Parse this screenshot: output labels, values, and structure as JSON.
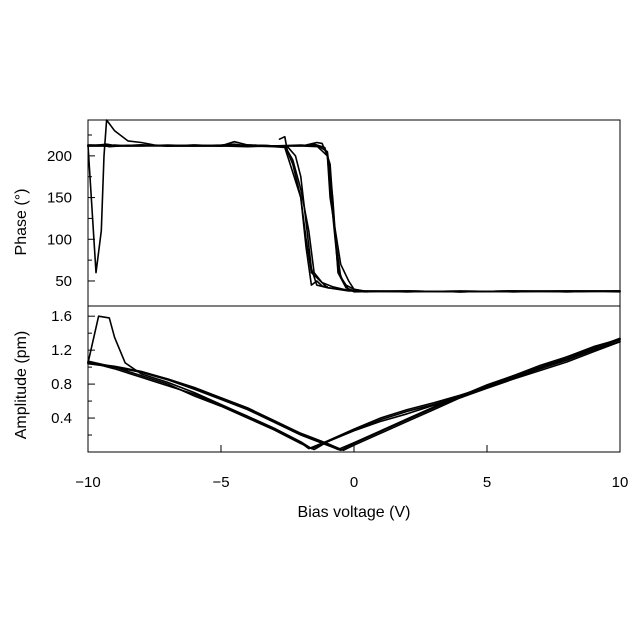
{
  "chart_data": {
    "type": "line",
    "xlabel": "Bias voltage (V)",
    "xlim": [
      -10,
      10
    ],
    "xticks": [
      -10,
      -5,
      0,
      5,
      10
    ],
    "xtick_labels": [
      "−10",
      "−5",
      "0",
      "5",
      "10"
    ],
    "grid": false,
    "legend": "none",
    "line_color": "#000000",
    "panels": [
      {
        "id": "phase",
        "ylabel": "Phase (°)",
        "ylim": [
          20,
          243
        ],
        "yticks": [
          50,
          100,
          150,
          200
        ],
        "ytick_labels": [
          "50",
          "100",
          "150",
          "200"
        ],
        "minor_yticks": [
          75,
          125,
          175,
          225
        ],
        "series": [
          {
            "x": [
              -10,
              -9.6,
              -9.3,
              -9.1,
              -8.7,
              -8.0,
              -7.0,
              -6.0,
              -5.0,
              -4.5,
              -4.0,
              -3.0,
              -2.6,
              -2.4,
              -2.0,
              -1.8,
              -1.6,
              -1.0,
              -0.6,
              -0.2,
              0,
              2,
              4,
              6,
              8,
              10
            ],
            "y": [
              213,
              213,
              214,
              213,
              212,
              212,
              213,
              212,
              213,
              214,
              212,
              211,
              210,
              190,
              150,
              100,
              60,
              42,
              40,
              38,
              38,
              37,
              38,
              37,
              38,
              38
            ]
          },
          {
            "x": [
              10,
              8,
              6,
              4,
              2,
              0,
              -0.2,
              -0.4,
              -0.6,
              -0.8,
              -1.0,
              -1.4,
              -2.0,
              -3.0,
              -4.0,
              -5.0,
              -6.0,
              -7.0,
              -8.0,
              -9.0,
              -10
            ],
            "y": [
              38,
              37,
              38,
              37,
              38,
              37,
              40,
              48,
              65,
              130,
              200,
              212,
              213,
              212,
              213,
              212,
              212,
              212,
              213,
              212,
              213
            ]
          },
          {
            "x": [
              -10,
              -9.5,
              -9.2,
              -8.8,
              -8.0,
              -7.0,
              -6.0,
              -5.0,
              -4.5,
              -4.0,
              -3.0,
              -2.6,
              -2.3,
              -2.0,
              -1.7,
              -1.5,
              -1.2,
              -0.8,
              -0.4,
              0,
              0.4,
              2,
              4,
              6,
              8,
              10
            ],
            "y": [
              212,
              213,
              211,
              212,
              213,
              212,
              212,
              212,
              217,
              213,
              212,
              212,
              195,
              160,
              110,
              60,
              48,
              43,
              40,
              38,
              37,
              38,
              37,
              38,
              38,
              38
            ]
          },
          {
            "x": [
              10,
              8,
              6,
              4,
              2,
              0.4,
              0,
              -0.3,
              -0.5,
              -0.7,
              -0.9,
              -1.1,
              -1.5,
              -2.0,
              -3.0,
              -4.0,
              -5.0,
              -6.0,
              -7.0,
              -8.0,
              -9.0,
              -10
            ],
            "y": [
              38,
              38,
              37,
              38,
              37,
              38,
              40,
              45,
              55,
              100,
              190,
              210,
              214,
              212,
              212,
              211,
              212,
              213,
              212,
              212,
              212,
              212
            ]
          },
          {
            "x": [
              -10,
              -9.6,
              -9.3,
              -9.0,
              -8.5,
              -8.0,
              -7.0,
              -6.0,
              -5.0,
              -4.0,
              -3.0,
              -2.5,
              -2.2,
              -2.0,
              -1.8,
              -1.6,
              -1.4,
              -1.0,
              -0.5,
              0,
              2,
              4,
              6,
              8,
              10
            ],
            "y": [
              212,
              213,
              212,
              213,
              212,
              213,
              212,
              213,
              212,
              213,
              212,
              211,
              200,
              175,
              120,
              65,
              45,
              42,
              40,
              38,
              38,
              37,
              38,
              37,
              38
            ]
          },
          {
            "x": [
              10,
              8,
              6,
              4,
              2,
              0,
              -0.3,
              -0.6,
              -0.8,
              -1.0,
              -1.3,
              -2.0,
              -3.0,
              -4.0,
              -5.0,
              -6.0,
              -7.0,
              -8.0,
              -9.0,
              -10
            ],
            "y": [
              37,
              38,
              38,
              37,
              38,
              38,
              42,
              60,
              150,
              205,
              211,
              212,
              212,
              213,
              212,
              212,
              212,
              213,
              212,
              212
            ]
          },
          {
            "x": [
              -10,
              -9.7,
              -9.5,
              -9.4,
              -9.3,
              -9.0,
              -8.5,
              -8.0,
              -7.5,
              -7.0
            ],
            "y": [
              213,
              60,
              110,
              200,
              243,
              230,
              218,
              216,
              213,
              212
            ]
          },
          {
            "x": [
              -2.8,
              -2.6,
              -2.5,
              -2.3,
              -2.0,
              -1.8,
              -1.6,
              -1.4,
              -1.2,
              -1.0
            ],
            "y": [
              220,
              223,
              205,
              190,
              150,
              90,
              45,
              50,
              44,
              43
            ]
          },
          {
            "x": [
              -1.8,
              -1.4,
              -1.2,
              -1.0,
              -0.9,
              -0.7,
              -0.5,
              -0.2,
              0,
              0.5
            ],
            "y": [
              213,
              216,
              215,
              200,
              150,
              110,
              70,
              50,
              40,
              37
            ]
          }
        ]
      },
      {
        "id": "amplitude",
        "ylabel": "Amplitude (pm)",
        "ylim": [
          0,
          1.72
        ],
        "yticks": [
          0.4,
          0.8,
          1.2,
          1.6
        ],
        "ytick_labels": [
          "0.4",
          "0.8",
          "1.2",
          "1.6"
        ],
        "minor_yticks": [
          0.2,
          0.6,
          1.0,
          1.4
        ],
        "series": [
          {
            "x": [
              -10,
              -9.6,
              -9.2,
              -9.0,
              -8.6,
              -8.0,
              -7.0,
              -6.0,
              -5.0,
              -4.0,
              -3.0,
              -2.0,
              -1.6,
              -1.0,
              0,
              1,
              2,
              3,
              4,
              5,
              6,
              7,
              8,
              9,
              10
            ],
            "y": [
              1.05,
              1.6,
              1.58,
              1.35,
              1.05,
              0.92,
              0.82,
              0.7,
              0.56,
              0.42,
              0.28,
              0.12,
              0.04,
              0.12,
              0.25,
              0.36,
              0.45,
              0.55,
              0.64,
              0.75,
              0.86,
              0.96,
              1.06,
              1.18,
              1.3
            ]
          },
          {
            "x": [
              10,
              9,
              8,
              7,
              6,
              5,
              4,
              3,
              2,
              1,
              0,
              -0.5,
              -1.0,
              -2.0,
              -3.0,
              -4.0,
              -5.0,
              -6.0,
              -7.0,
              -8.0,
              -9.0,
              -10
            ],
            "y": [
              1.32,
              1.22,
              1.12,
              1.0,
              0.9,
              0.78,
              0.65,
              0.52,
              0.38,
              0.24,
              0.1,
              0.02,
              0.08,
              0.2,
              0.35,
              0.5,
              0.62,
              0.74,
              0.85,
              0.94,
              1.0,
              1.06
            ]
          },
          {
            "x": [
              -10,
              -9.0,
              -8.0,
              -7.0,
              -6.0,
              -5.0,
              -4.0,
              -3.0,
              -2.0,
              -1.5,
              -1.0,
              0,
              1,
              2,
              3,
              4,
              5,
              6,
              7,
              8,
              9,
              10
            ],
            "y": [
              1.07,
              1.0,
              0.9,
              0.8,
              0.66,
              0.54,
              0.4,
              0.26,
              0.1,
              0.03,
              0.12,
              0.26,
              0.38,
              0.48,
              0.56,
              0.66,
              0.76,
              0.87,
              0.98,
              1.08,
              1.2,
              1.33
            ]
          },
          {
            "x": [
              10,
              9,
              8,
              7,
              6,
              5,
              4,
              3,
              2,
              1,
              0,
              -0.4,
              -1.0,
              -2.0,
              -3.0,
              -4.0,
              -5.0,
              -6.0,
              -7.0,
              -8.0,
              -9.0,
              -10
            ],
            "y": [
              1.3,
              1.2,
              1.1,
              0.98,
              0.88,
              0.77,
              0.64,
              0.5,
              0.36,
              0.22,
              0.08,
              0.02,
              0.1,
              0.22,
              0.37,
              0.52,
              0.64,
              0.76,
              0.86,
              0.95,
              1.01,
              1.05
            ]
          },
          {
            "x": [
              -10,
              -9.5,
              -9.0,
              -8.0,
              -7.0,
              -6.0,
              -5.0,
              -4.0,
              -3.0,
              -2.0,
              -1.7,
              -1.0,
              0,
              1,
              2,
              3,
              4,
              5,
              6,
              7,
              8,
              9,
              10
            ],
            "y": [
              1.05,
              1.02,
              0.98,
              0.88,
              0.78,
              0.68,
              0.55,
              0.42,
              0.27,
              0.11,
              0.04,
              0.13,
              0.27,
              0.4,
              0.5,
              0.58,
              0.67,
              0.77,
              0.88,
              1.0,
              1.1,
              1.22,
              1.34
            ]
          },
          {
            "x": [
              10,
              9,
              8,
              7,
              6,
              5,
              4,
              3,
              2,
              1,
              0,
              -0.6,
              -1.0,
              -2.0,
              -3.0,
              -4.0,
              -5.0,
              -6.0,
              -7.0,
              -8.0,
              -9.0,
              -10
            ],
            "y": [
              1.33,
              1.24,
              1.12,
              1.02,
              0.9,
              0.79,
              0.66,
              0.53,
              0.39,
              0.25,
              0.11,
              0.03,
              0.09,
              0.21,
              0.36,
              0.51,
              0.63,
              0.75,
              0.86,
              0.94,
              1.0,
              1.04
            ]
          }
        ]
      }
    ]
  }
}
